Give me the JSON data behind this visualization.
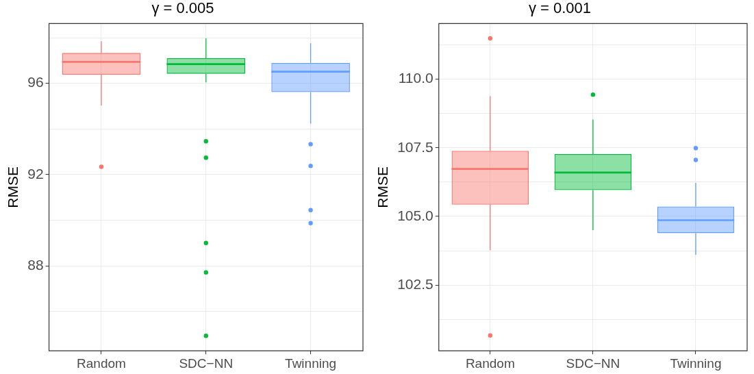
{
  "chart_data": [
    {
      "type": "box",
      "title": "γ = 0.005",
      "ylabel": "RMSE",
      "categories": [
        "Random",
        "SDC−NN",
        "Twinning"
      ],
      "colors": [
        "#f8766d",
        "#00ba38",
        "#619cff"
      ],
      "ylim": [
        84.27,
        98.62
      ],
      "yticks": [
        {
          "value": 86,
          "label": null
        },
        88,
        {
          "value": 90,
          "label": null
        },
        92,
        {
          "value": 94,
          "label": null
        },
        96,
        {
          "value": 98,
          "label": null
        }
      ],
      "grid": true,
      "boxes": [
        {
          "low": 95.02,
          "q1": 96.38,
          "median": 96.94,
          "q3": 97.33,
          "high": 97.84,
          "outliers": [
            92.34
          ]
        },
        {
          "low": 96.04,
          "q1": 96.42,
          "median": 96.84,
          "q3": 97.1,
          "high": 97.97,
          "outliers": [
            93.46,
            92.74,
            89.0,
            87.71,
            84.93
          ]
        },
        {
          "low": 94.23,
          "q1": 95.61,
          "median": 96.51,
          "q3": 96.9,
          "high": 97.75,
          "outliers": [
            93.33,
            92.38,
            90.44,
            89.87
          ]
        }
      ]
    },
    {
      "type": "box",
      "title": "γ = 0.001",
      "ylabel": "RMSE",
      "categories": [
        "Random",
        "SDC−NN",
        "Twinning"
      ],
      "colors": [
        "#f8766d",
        "#00ba38",
        "#619cff"
      ],
      "ylim": [
        100.1,
        112.03
      ],
      "yticks": [
        {
          "value": 101.25,
          "label": null
        },
        {
          "value": 102.5,
          "label": "102.5"
        },
        {
          "value": 103.75,
          "label": null
        },
        {
          "value": 105,
          "label": "105.0"
        },
        {
          "value": 106.25,
          "label": null
        },
        {
          "value": 107.5,
          "label": "107.5"
        },
        {
          "value": 108.75,
          "label": null
        },
        {
          "value": 110,
          "label": "110.0"
        },
        {
          "value": 111.25,
          "label": null
        }
      ],
      "grid": true,
      "boxes": [
        {
          "low": 103.77,
          "q1": 105.43,
          "median": 106.73,
          "q3": 107.39,
          "high": 109.39,
          "outliers": [
            111.49,
            100.66
          ]
        },
        {
          "low": 104.5,
          "q1": 105.96,
          "median": 106.6,
          "q3": 107.27,
          "high": 108.53,
          "outliers": [
            109.44
          ]
        },
        {
          "low": 103.6,
          "q1": 104.39,
          "median": 104.86,
          "q3": 105.36,
          "high": 106.22,
          "outliers": [
            107.49,
            107.06
          ]
        }
      ]
    }
  ]
}
